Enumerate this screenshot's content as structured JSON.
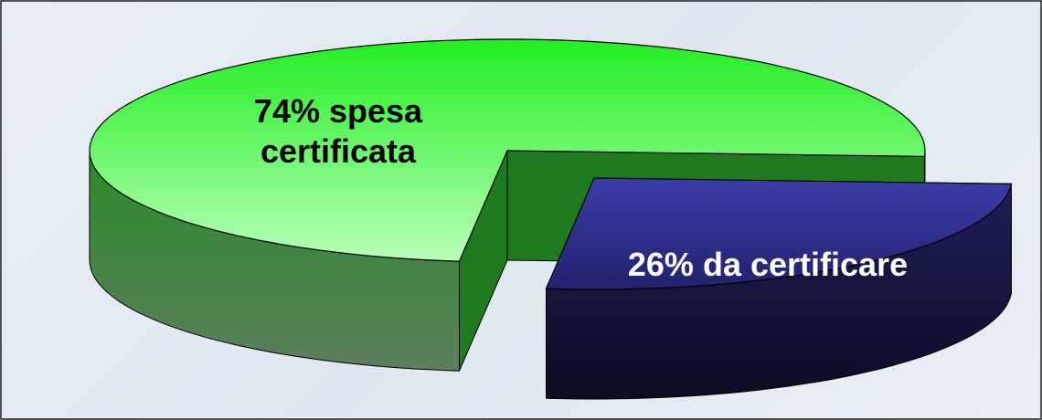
{
  "chart_data": {
    "type": "pie3d",
    "categories": [
      "spesa certificata",
      "da certificare"
    ],
    "values": [
      74,
      26
    ],
    "value_labels": [
      "74%",
      "26%"
    ],
    "colors": [
      "#33ee33",
      "#2e2e8e"
    ]
  }
}
